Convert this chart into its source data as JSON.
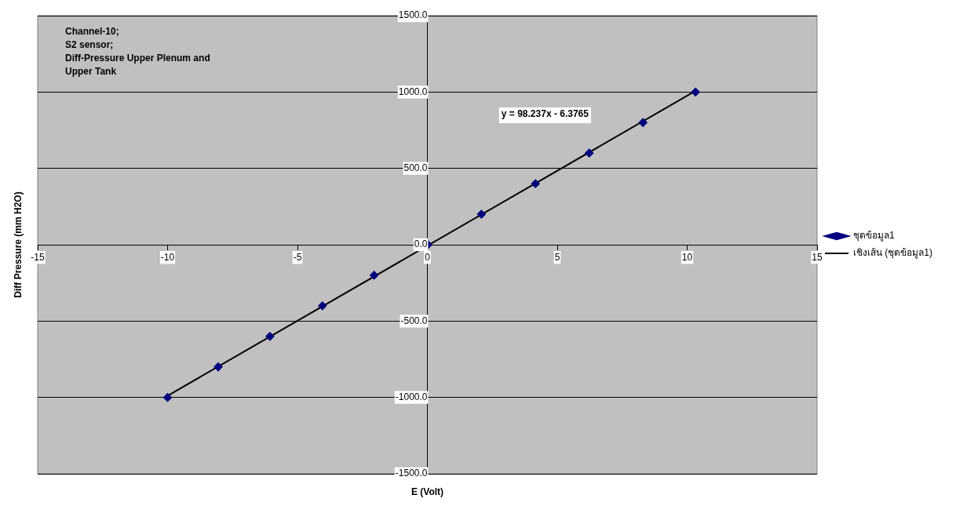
{
  "chart_data": {
    "type": "scatter",
    "xlabel": "E (Volt)",
    "ylabel": "Diff Pressure (mm H2O)",
    "annotations": [
      "Channel-10;\nS2 sensor;\nDiff-Pressure Upper Plenum and\nUpper Tank",
      "y = 98.237x - 6.3765"
    ],
    "series": [
      {
        "name": "ชุดข้อมูล1",
        "type": "scatter",
        "color": "#000080",
        "marker": "diamond",
        "x": [
          -10,
          -8.05,
          -6.06,
          -4.04,
          -2.05,
          0.02,
          2.08,
          4.16,
          6.23,
          8.3,
          10.32
        ],
        "values": [
          -1000,
          -800,
          -600,
          -400,
          -200,
          0,
          200,
          400,
          600,
          800,
          1000
        ]
      },
      {
        "name": "เชิงเส้น (ชุดข้อมูล1)",
        "type": "line",
        "color": "#000000",
        "marker": "none",
        "x": [
          -10,
          10.32
        ],
        "values": [
          -989,
          1007
        ]
      }
    ],
    "xlim": [
      -15,
      15
    ],
    "xticks": [
      -15,
      -10,
      -5,
      0,
      5,
      10,
      15
    ],
    "ylim": [
      -1500,
      1500
    ],
    "yticks": [
      {
        "value": -1500,
        "label": "-1500.0"
      },
      {
        "value": -1000,
        "label": "-1000.0"
      },
      {
        "value": -500,
        "label": "-500.0"
      },
      {
        "value": 0,
        "label": "0.0"
      },
      {
        "value": 500,
        "label": "500.0"
      },
      {
        "value": 1000,
        "label": "1000.0"
      },
      {
        "value": 1500,
        "label": "1500.0"
      }
    ],
    "grid": "y",
    "legend": "right"
  }
}
